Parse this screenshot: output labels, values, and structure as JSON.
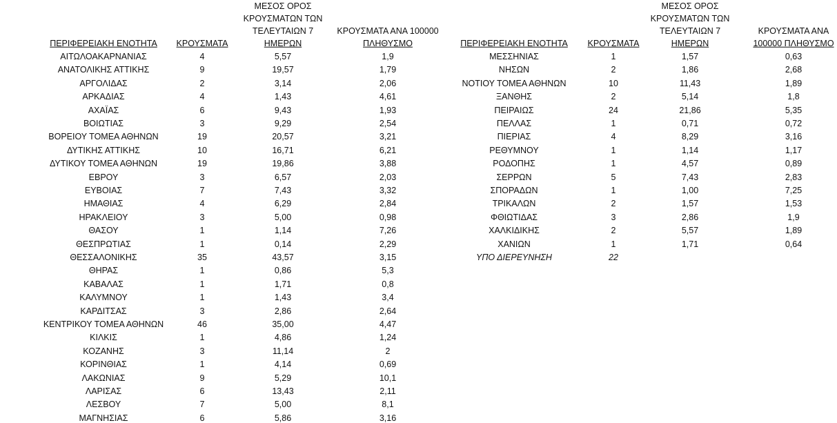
{
  "tables": [
    {
      "headers": [
        [
          "ΠΕΡΙΦΕΡΕΙΑΚΗ ΕΝΟΤΗΤΑ"
        ],
        [
          "ΚΡΟΥΣΜΑΤΑ"
        ],
        [
          "ΜΕΣΟΣ ΟΡΟΣ",
          "ΚΡΟΥΣΜΑΤΩΝ ΤΩΝ",
          "ΤΕΛΕΥΤΑΙΩΝ 7",
          "ΗΜΕΡΩΝ"
        ],
        [
          "ΚΡΟΥΣΜΑΤΑ ΑΝΑ 100000",
          "ΠΛΗΘΥΣΜΟ"
        ]
      ],
      "rows": [
        [
          "ΑΙΤΩΛΟΑΚΑΡΝΑΝΙΑΣ",
          4,
          "5,57",
          "1,9"
        ],
        [
          "ΑΝΑΤΟΛΙΚΗΣ ΑΤΤΙΚΗΣ",
          9,
          "19,57",
          "1,79"
        ],
        [
          "ΑΡΓΟΛΙΔΑΣ",
          2,
          "3,14",
          "2,06"
        ],
        [
          "ΑΡΚΑΔΙΑΣ",
          4,
          "1,43",
          "4,61"
        ],
        [
          "ΑΧΑΪΑΣ",
          6,
          "9,43",
          "1,93"
        ],
        [
          "ΒΟΙΩΤΙΑΣ",
          3,
          "9,29",
          "2,54"
        ],
        [
          "ΒΟΡΕΙΟΥ ΤΟΜΕΑ ΑΘΗΝΩΝ",
          19,
          "20,57",
          "3,21"
        ],
        [
          "ΔΥΤΙΚΗΣ ΑΤΤΙΚΗΣ",
          10,
          "16,71",
          "6,21"
        ],
        [
          "ΔΥΤΙΚΟΥ ΤΟΜΕΑ ΑΘΗΝΩΝ",
          19,
          "19,86",
          "3,88"
        ],
        [
          "ΕΒΡΟΥ",
          3,
          "6,57",
          "2,03"
        ],
        [
          "ΕΥΒΟΙΑΣ",
          7,
          "7,43",
          "3,32"
        ],
        [
          "ΗΜΑΘΙΑΣ",
          4,
          "6,29",
          "2,84"
        ],
        [
          "ΗΡΑΚΛΕΙΟΥ",
          3,
          "5,00",
          "0,98"
        ],
        [
          "ΘΑΣΟΥ",
          1,
          "1,14",
          "7,26"
        ],
        [
          "ΘΕΣΠΡΩΤΙΑΣ",
          1,
          "0,14",
          "2,29"
        ],
        [
          "ΘΕΣΣΑΛΟΝΙΚΗΣ",
          35,
          "43,57",
          "3,15"
        ],
        [
          "ΘΗΡΑΣ",
          1,
          "0,86",
          "5,3"
        ],
        [
          "ΚΑΒΑΛΑΣ",
          1,
          "1,71",
          "0,8"
        ],
        [
          "ΚΑΛΥΜΝΟΥ",
          1,
          "1,43",
          "3,4"
        ],
        [
          "ΚΑΡΔΙΤΣΑΣ",
          3,
          "2,86",
          "2,64"
        ],
        [
          "ΚΕΝΤΡΙΚΟΥ ΤΟΜΕΑ ΑΘΗΝΩΝ",
          46,
          "35,00",
          "4,47"
        ],
        [
          "ΚΙΛΚΙΣ",
          1,
          "4,86",
          "1,24"
        ],
        [
          "ΚΟΖΑΝΗΣ",
          3,
          "11,14",
          2
        ],
        [
          "ΚΟΡΙΝΘΙΑΣ",
          1,
          "4,14",
          "0,69"
        ],
        [
          "ΛΑΚΩΝΙΑΣ",
          9,
          "5,29",
          "10,1"
        ],
        [
          "ΛΑΡΙΣΑΣ",
          6,
          "13,43",
          "2,11"
        ],
        [
          "ΛΕΣΒΟΥ",
          7,
          "5,00",
          "8,1"
        ],
        [
          "ΜΑΓΝΗΣΙΑΣ",
          6,
          "5,86",
          "3,16"
        ]
      ]
    },
    {
      "headers": [
        [
          "ΠΕΡΙΦΕΡΕΙΑΚΗ ΕΝΟΤΗΤΑ"
        ],
        [
          "ΚΡΟΥΣΜΑΤΑ"
        ],
        [
          "ΜΕΣΟΣ ΟΡΟΣ",
          "ΚΡΟΥΣΜΑΤΩΝ ΤΩΝ",
          "ΤΕΛΕΥΤΑΙΩΝ 7",
          "ΗΜΕΡΩΝ"
        ],
        [
          "ΚΡΟΥΣΜΑΤΑ ΑΝΑ",
          "100000 ΠΛΗΘΥΣΜΟ"
        ]
      ],
      "rows": [
        [
          "ΜΕΣΣΗΝΙΑΣ",
          1,
          "1,57",
          "0,63"
        ],
        [
          "ΝΗΣΩΝ",
          2,
          "1,86",
          "2,68"
        ],
        [
          "ΝΟΤΙΟΥ ΤΟΜΕΑ ΑΘΗΝΩΝ",
          10,
          "11,43",
          "1,89"
        ],
        [
          "ΞΑΝΘΗΣ",
          2,
          "5,14",
          "1,8"
        ],
        [
          "ΠΕΙΡΑΙΩΣ",
          24,
          "21,86",
          "5,35"
        ],
        [
          "ΠΕΛΛΑΣ",
          1,
          "0,71",
          "0,72"
        ],
        [
          "ΠΙΕΡΙΑΣ",
          4,
          "8,29",
          "3,16"
        ],
        [
          "ΡΕΘΥΜΝΟΥ",
          1,
          "1,14",
          "1,17"
        ],
        [
          "ΡΟΔΟΠΗΣ",
          1,
          "4,57",
          "0,89"
        ],
        [
          "ΣΕΡΡΩΝ",
          5,
          "7,43",
          "2,83"
        ],
        [
          "ΣΠΟΡΑΔΩΝ",
          1,
          "1,00",
          "7,25"
        ],
        [
          "ΤΡΙΚΑΛΩΝ",
          2,
          "1,57",
          "1,53"
        ],
        [
          "ΦΘΙΩΤΙΔΑΣ",
          3,
          "2,86",
          "1,9"
        ],
        [
          "ΧΑΛΚΙΔΙΚΗΣ",
          2,
          "5,57",
          "1,89"
        ],
        [
          "ΧΑΝΙΩΝ",
          1,
          "1,71",
          "0,64"
        ]
      ],
      "footer_row": [
        "ΥΠΟ ΔΙΕΡΕΥΝΗΣΗ",
        22
      ]
    }
  ]
}
